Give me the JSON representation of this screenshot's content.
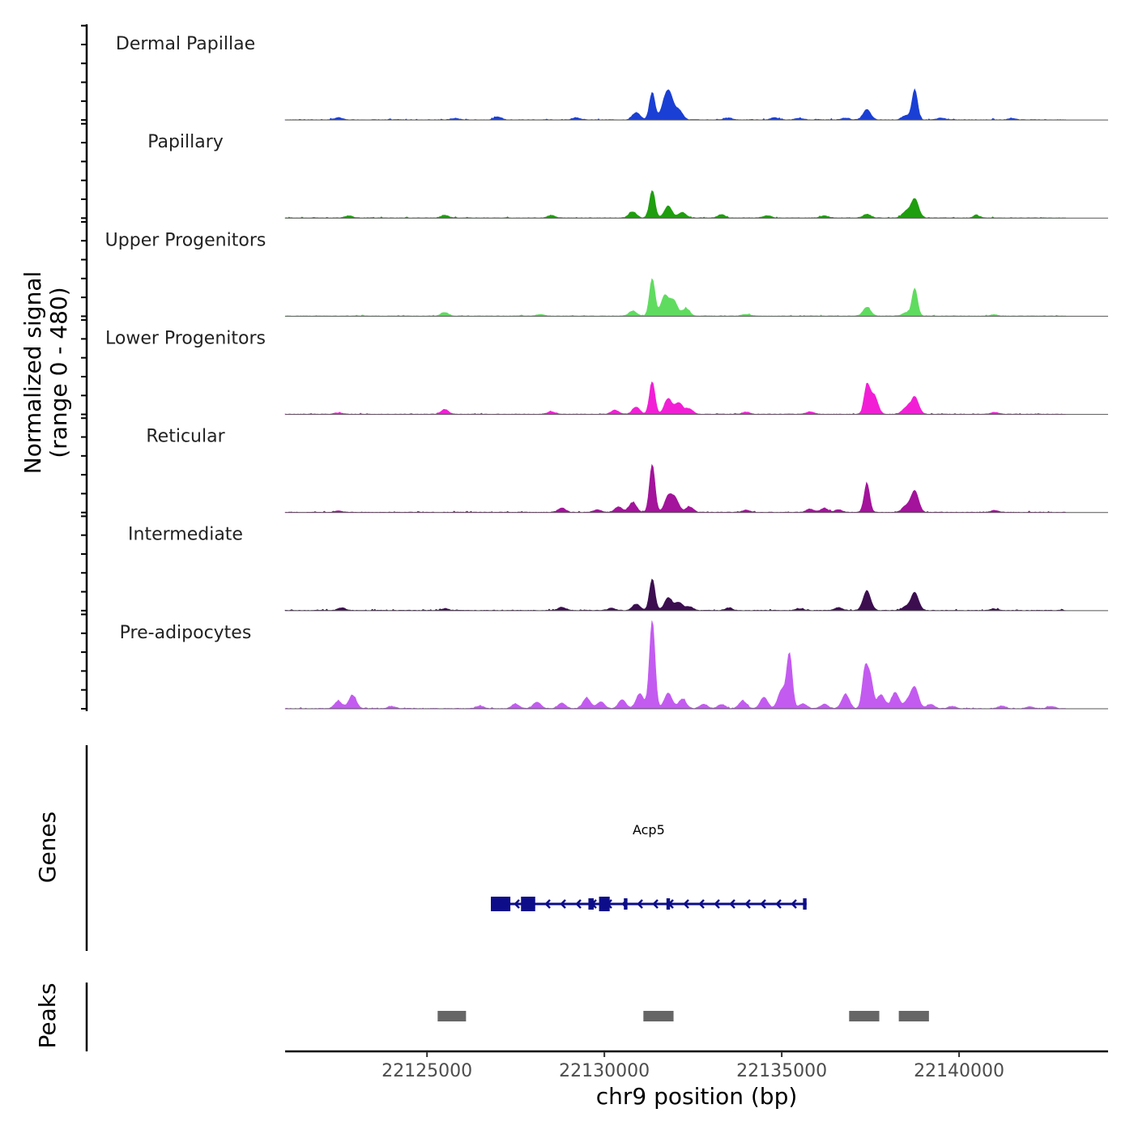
{
  "chart_data": {
    "type": "area",
    "title": "",
    "xlabel": "chr9 position (bp)",
    "ylabel": "Normalized signal",
    "ylabel_range": "(range 0 - 480)",
    "xlim": [
      22121000,
      22144200
    ],
    "ylim": [
      0,
      480
    ],
    "x_ticks": [
      22125000,
      22130000,
      22135000,
      22140000
    ],
    "x_tick_labels": [
      "22125000",
      "22130000",
      "22135000",
      "22140000"
    ],
    "tracks": [
      {
        "name": "Dermal Papillae",
        "color": "#1a3fd4",
        "peaks": [
          [
            22122500,
            12
          ],
          [
            22125800,
            8
          ],
          [
            22127000,
            16
          ],
          [
            22129200,
            12
          ],
          [
            22130900,
            40
          ],
          [
            22131350,
            150
          ],
          [
            22131700,
            88
          ],
          [
            22131850,
            118
          ],
          [
            22132100,
            52
          ],
          [
            22133500,
            10
          ],
          [
            22134800,
            12
          ],
          [
            22135500,
            8
          ],
          [
            22136800,
            10
          ],
          [
            22137400,
            56
          ],
          [
            22138500,
            22
          ],
          [
            22138750,
            165
          ],
          [
            22139500,
            10
          ],
          [
            22141500,
            8
          ]
        ]
      },
      {
        "name": "Papillary",
        "color": "#1f9e0f",
        "peaks": [
          [
            22122800,
            12
          ],
          [
            22125500,
            14
          ],
          [
            22128500,
            14
          ],
          [
            22130800,
            34
          ],
          [
            22131350,
            150
          ],
          [
            22131800,
            65
          ],
          [
            22132200,
            30
          ],
          [
            22133300,
            18
          ],
          [
            22134600,
            12
          ],
          [
            22136200,
            12
          ],
          [
            22137400,
            20
          ],
          [
            22138500,
            34
          ],
          [
            22138750,
            105
          ],
          [
            22140500,
            12
          ]
        ]
      },
      {
        "name": "Upper Progenitors",
        "color": "#5fdc5f",
        "peaks": [
          [
            22125500,
            20
          ],
          [
            22128200,
            10
          ],
          [
            22130800,
            28
          ],
          [
            22131350,
            205
          ],
          [
            22131700,
            110
          ],
          [
            22131950,
            85
          ],
          [
            22132300,
            40
          ],
          [
            22134000,
            10
          ],
          [
            22137400,
            48
          ],
          [
            22138500,
            18
          ],
          [
            22138750,
            150
          ],
          [
            22141000,
            8
          ]
        ]
      },
      {
        "name": "Lower Progenitors",
        "color": "#f21ed6",
        "peaks": [
          [
            22122500,
            8
          ],
          [
            22125500,
            26
          ],
          [
            22128500,
            14
          ],
          [
            22130300,
            22
          ],
          [
            22130900,
            38
          ],
          [
            22131350,
            178
          ],
          [
            22131800,
            85
          ],
          [
            22132100,
            62
          ],
          [
            22132400,
            28
          ],
          [
            22134000,
            12
          ],
          [
            22135800,
            14
          ],
          [
            22137400,
            150
          ],
          [
            22137600,
            105
          ],
          [
            22138500,
            34
          ],
          [
            22138750,
            95
          ],
          [
            22141000,
            10
          ]
        ]
      },
      {
        "name": "Reticular",
        "color": "#a3139b",
        "peaks": [
          [
            22122500,
            8
          ],
          [
            22128800,
            24
          ],
          [
            22129800,
            14
          ],
          [
            22130400,
            30
          ],
          [
            22130800,
            52
          ],
          [
            22131350,
            262
          ],
          [
            22131800,
            85
          ],
          [
            22132000,
            70
          ],
          [
            22132400,
            30
          ],
          [
            22134000,
            12
          ],
          [
            22135800,
            18
          ],
          [
            22136200,
            22
          ],
          [
            22136600,
            14
          ],
          [
            22137400,
            158
          ],
          [
            22138500,
            34
          ],
          [
            22138750,
            118
          ],
          [
            22141000,
            10
          ]
        ]
      },
      {
        "name": "Intermediate",
        "color": "#3c0e50",
        "peaks": [
          [
            22122600,
            14
          ],
          [
            22125500,
            10
          ],
          [
            22128800,
            18
          ],
          [
            22130200,
            12
          ],
          [
            22130900,
            34
          ],
          [
            22131350,
            170
          ],
          [
            22131800,
            70
          ],
          [
            22132100,
            44
          ],
          [
            22132400,
            20
          ],
          [
            22133500,
            12
          ],
          [
            22135500,
            10
          ],
          [
            22136600,
            16
          ],
          [
            22137400,
            108
          ],
          [
            22138500,
            20
          ],
          [
            22138750,
            98
          ],
          [
            22141000,
            8
          ]
        ]
      },
      {
        "name": "Pre-adipocytes",
        "color": "#c35bf0",
        "peaks": [
          [
            22122500,
            40
          ],
          [
            22122900,
            72
          ],
          [
            22124000,
            12
          ],
          [
            22126500,
            14
          ],
          [
            22127500,
            24
          ],
          [
            22128100,
            36
          ],
          [
            22128800,
            30
          ],
          [
            22129500,
            58
          ],
          [
            22129900,
            36
          ],
          [
            22130500,
            48
          ],
          [
            22131000,
            82
          ],
          [
            22131350,
            480
          ],
          [
            22131800,
            85
          ],
          [
            22132200,
            52
          ],
          [
            22132800,
            24
          ],
          [
            22133300,
            22
          ],
          [
            22133900,
            42
          ],
          [
            22134500,
            62
          ],
          [
            22135000,
            100
          ],
          [
            22135220,
            295
          ],
          [
            22135600,
            26
          ],
          [
            22136200,
            24
          ],
          [
            22136800,
            78
          ],
          [
            22137350,
            215
          ],
          [
            22137500,
            155
          ],
          [
            22137800,
            75
          ],
          [
            22138200,
            88
          ],
          [
            22138550,
            38
          ],
          [
            22138750,
            112
          ],
          [
            22139200,
            24
          ],
          [
            22139800,
            12
          ],
          [
            22141200,
            14
          ],
          [
            22142000,
            10
          ],
          [
            22142600,
            12
          ]
        ]
      }
    ],
    "genes": [
      {
        "name": "Acp5",
        "strand": "-",
        "start": 22126800,
        "end": 22135700,
        "exons": [
          [
            22126800,
            22127350
          ],
          [
            22127650,
            22128050
          ],
          [
            22129550,
            22129700
          ],
          [
            22129850,
            22130150
          ],
          [
            22130550,
            22130650
          ],
          [
            22131750,
            22131850
          ],
          [
            22135600,
            22135700
          ]
        ]
      }
    ],
    "peak_regions": [
      [
        22125300,
        22126100
      ],
      [
        22131100,
        22131950
      ],
      [
        22136900,
        22137750
      ],
      [
        22138300,
        22139150
      ]
    ]
  },
  "labels": {
    "genes_title": "Genes",
    "peaks_title": "Peaks"
  }
}
